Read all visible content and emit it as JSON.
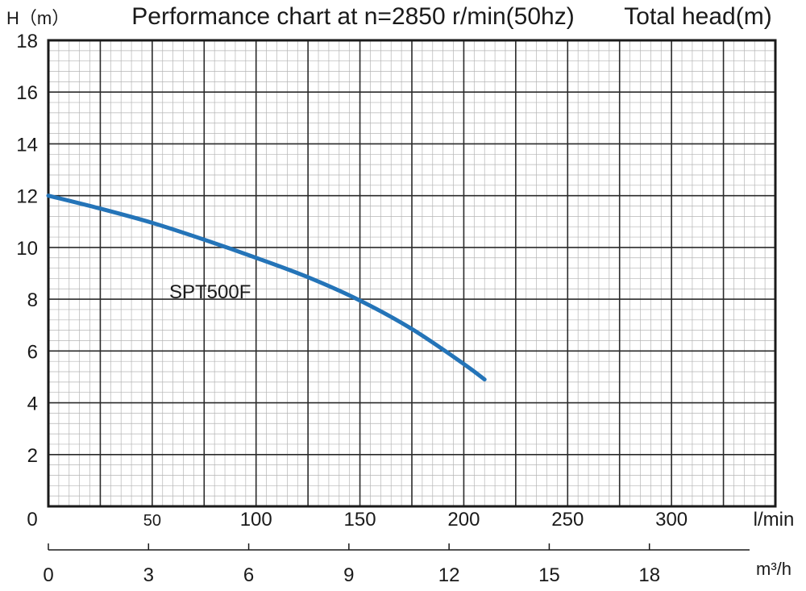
{
  "chart_data": {
    "type": "line",
    "title": "Performance chart at n=2850 r/min(50hz)",
    "right_title": "Total head(m)",
    "ylabel": "H（m）",
    "ylim": [
      0,
      18
    ],
    "y_ticks": [
      "0",
      "2",
      "4",
      "6",
      "8",
      "10",
      "12",
      "14",
      "16",
      "18"
    ],
    "xlim": [
      0,
      350
    ],
    "x_ticks": [
      "50",
      "100",
      "150",
      "200",
      "250",
      "300"
    ],
    "x_tick_values": [
      50,
      100,
      150,
      200,
      250,
      300
    ],
    "xlabel": "l/min",
    "x2_ticks": [
      "0",
      "3",
      "6",
      "9",
      "12",
      "15",
      "18"
    ],
    "x2_tick_values": [
      0,
      3,
      6,
      9,
      12,
      15,
      18
    ],
    "x2lim": [
      0,
      21
    ],
    "x2label": "m³/h",
    "grid": true,
    "series": [
      {
        "name": "SPT500F",
        "color": "#2474b8",
        "x": [
          0,
          25,
          50,
          75,
          100,
          125,
          150,
          175,
          200,
          210
        ],
        "y": [
          12.0,
          11.5,
          10.95,
          10.3,
          9.6,
          8.85,
          7.95,
          6.85,
          5.5,
          4.9
        ]
      }
    ]
  }
}
